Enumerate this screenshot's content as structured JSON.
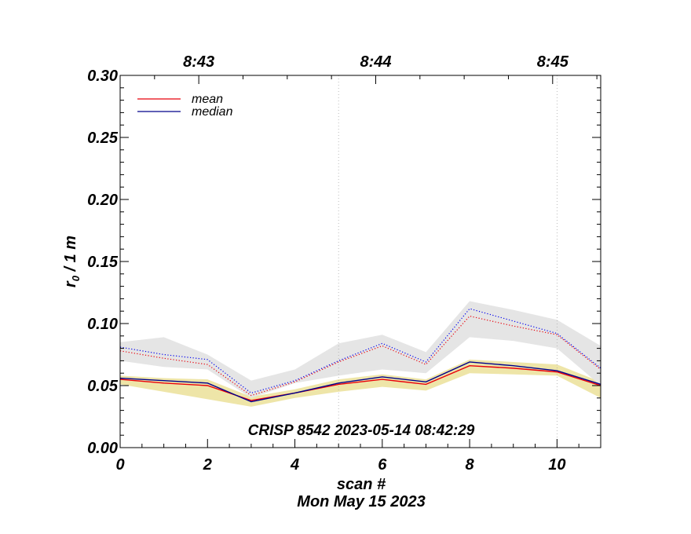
{
  "chart_data": {
    "type": "line",
    "title": "",
    "xlabel": "scan #",
    "ylabel": "r",
    "ylabel_sub": "0",
    "ylabel_suffix": " / 1 m",
    "date_label": "Mon May 15 2023",
    "annotation": "CRISP 8542 2023-05-14 08:42:29",
    "xlim": [
      0,
      11
    ],
    "ylim": [
      0,
      0.3
    ],
    "xticks": [
      0,
      2,
      4,
      6,
      8,
      10
    ],
    "xtick_labels": [
      "0",
      "2",
      "4",
      "6",
      "8",
      "10"
    ],
    "yticks": [
      0,
      0.05,
      0.1,
      0.15,
      0.2,
      0.25,
      0.3
    ],
    "ytick_labels": [
      "0.00",
      "0.05",
      "0.10",
      "0.15",
      "0.20",
      "0.25",
      "0.30"
    ],
    "top_axis": {
      "tick_positions": [
        1.8,
        5.85,
        9.9
      ],
      "tick_labels": [
        "8:43",
        "8:44",
        "8:45"
      ]
    },
    "vertical_lines": [
      5,
      10
    ],
    "legend": [
      {
        "label": "mean",
        "color": "#e8000b"
      },
      {
        "label": "median",
        "color": "#00008b"
      }
    ],
    "x": [
      0,
      1,
      2,
      3,
      4,
      5,
      6,
      7,
      8,
      9,
      10,
      11
    ],
    "series": [
      {
        "name": "mean",
        "style": "solid",
        "color": "#e8000b",
        "values": [
          0.055,
          0.052,
          0.05,
          0.038,
          0.044,
          0.051,
          0.055,
          0.051,
          0.066,
          0.064,
          0.061,
          0.05
        ]
      },
      {
        "name": "median",
        "style": "solid",
        "color": "#00008b",
        "values": [
          0.056,
          0.054,
          0.052,
          0.037,
          0.044,
          0.052,
          0.057,
          0.053,
          0.069,
          0.066,
          0.062,
          0.051
        ]
      },
      {
        "name": "mean (upper)",
        "style": "dotted",
        "color": "#e8000b",
        "values": [
          0.078,
          0.072,
          0.067,
          0.042,
          0.053,
          0.069,
          0.082,
          0.067,
          0.106,
          0.098,
          0.091,
          0.063
        ]
      },
      {
        "name": "median (upper)",
        "style": "dotted",
        "color": "#0000ee",
        "values": [
          0.081,
          0.075,
          0.071,
          0.044,
          0.054,
          0.07,
          0.084,
          0.069,
          0.112,
          0.102,
          0.092,
          0.064
        ]
      }
    ],
    "bands": [
      {
        "name": "lower band",
        "color": "#eee5a8",
        "upper": [
          0.058,
          0.056,
          0.055,
          0.041,
          0.047,
          0.055,
          0.059,
          0.055,
          0.071,
          0.069,
          0.067,
          0.053
        ],
        "lower": [
          0.051,
          0.045,
          0.039,
          0.033,
          0.04,
          0.045,
          0.049,
          0.046,
          0.06,
          0.059,
          0.058,
          0.04
        ]
      },
      {
        "name": "upper band",
        "color": "#e5e5e5",
        "upper": [
          0.085,
          0.089,
          0.075,
          0.054,
          0.063,
          0.084,
          0.091,
          0.077,
          0.118,
          0.111,
          0.103,
          0.082
        ],
        "lower": [
          0.07,
          0.065,
          0.063,
          0.04,
          0.052,
          0.058,
          0.063,
          0.06,
          0.089,
          0.086,
          0.08,
          0.05
        ]
      }
    ]
  }
}
